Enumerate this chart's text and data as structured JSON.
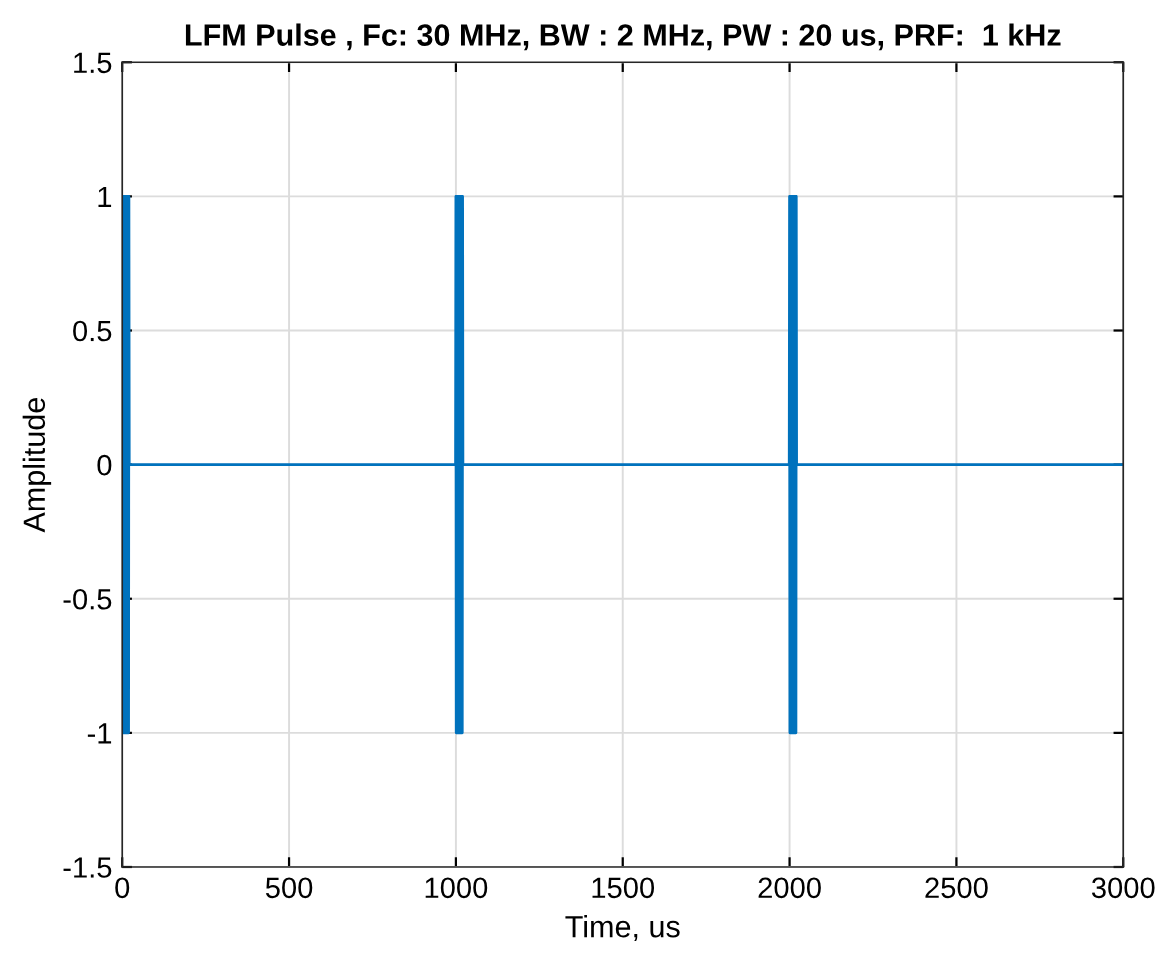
{
  "chart_data": {
    "type": "line",
    "title": "LFM Pulse , Fc: 30 MHz, BW : 2 MHz, PW : 20 us, PRF:  1 kHz",
    "xlabel": "Time, us",
    "ylabel": "Amplitude",
    "series": [
      {
        "color": "#0072bd",
        "x": [
          0,
          1,
          2,
          3,
          4,
          5,
          6,
          7,
          8,
          9,
          10,
          11,
          12,
          13,
          14,
          15,
          16,
          17,
          18,
          19,
          20,
          21,
          999,
          1000,
          1001,
          1002,
          1003,
          1004,
          1005,
          1006,
          1007,
          1008,
          1009,
          1010,
          1011,
          1012,
          1013,
          1014,
          1015,
          1016,
          1017,
          1018,
          1019,
          1020,
          1021,
          1999,
          2000,
          2001,
          2002,
          2003,
          2004,
          2005,
          2006,
          2007,
          2008,
          2009,
          2010,
          2011,
          2012,
          2013,
          2014,
          2015,
          2016,
          2017,
          2018,
          2019,
          2020,
          2021,
          3000
        ],
        "values": [
          1,
          -1,
          1,
          -1,
          1,
          -1,
          1,
          -1,
          1,
          -1,
          1,
          -1,
          1,
          -1,
          1,
          -1,
          1,
          -1,
          1,
          -1,
          1,
          0,
          0,
          1,
          -1,
          1,
          -1,
          1,
          -1,
          1,
          -1,
          1,
          -1,
          1,
          -1,
          1,
          -1,
          1,
          -1,
          1,
          -1,
          1,
          -1,
          1,
          0,
          0,
          1,
          -1,
          1,
          -1,
          1,
          -1,
          1,
          -1,
          1,
          -1,
          1,
          -1,
          1,
          -1,
          1,
          -1,
          1,
          -1,
          1,
          -1,
          1,
          0,
          0
        ]
      }
    ],
    "xlim": [
      0,
      3000
    ],
    "xticks": [
      0,
      500,
      1000,
      1500,
      2000,
      2500,
      3000
    ],
    "ylim": [
      -1.5,
      1.5
    ],
    "yticks": [
      -1.5,
      -1,
      -0.5,
      0,
      0.5,
      1,
      1.5
    ],
    "grid": true,
    "line_style": "solid"
  }
}
